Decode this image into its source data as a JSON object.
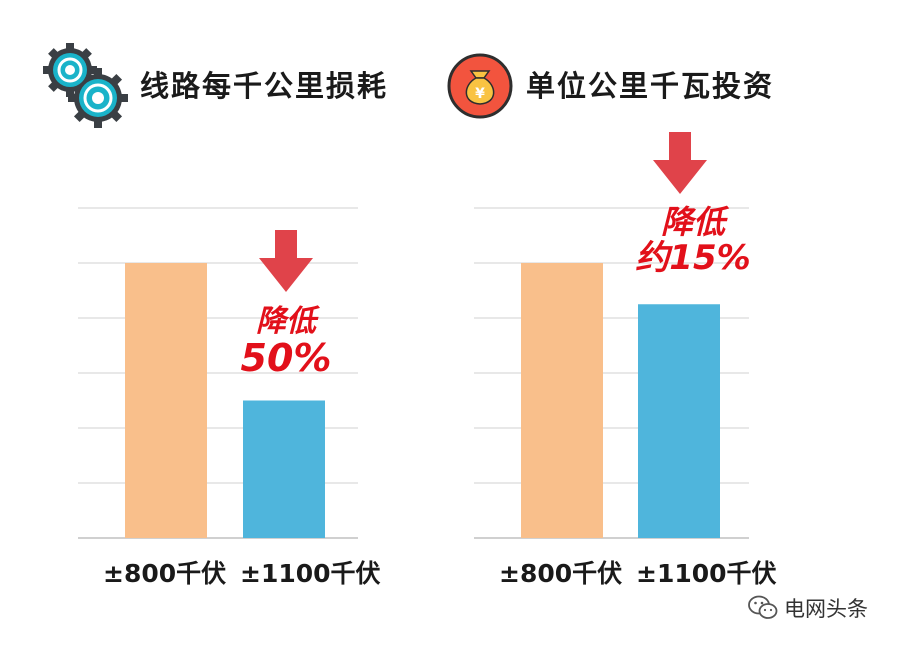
{
  "panels": [
    {
      "title": "线路每千公里损耗",
      "icon": "gears-icon",
      "annotation": [
        "降低",
        "50%"
      ]
    },
    {
      "title": "单位公里千瓦投资",
      "icon": "money-bag-icon",
      "annotation": [
        "降低",
        "约15%"
      ]
    }
  ],
  "chart_data": [
    {
      "type": "bar",
      "title": "线路每千公里损耗",
      "categories": [
        "±800千伏",
        "±1100千伏"
      ],
      "values": [
        100,
        50
      ],
      "ylim": [
        0,
        120
      ],
      "grid": true,
      "colors": [
        "#f9bf8b",
        "#4fb5dc"
      ]
    },
    {
      "type": "bar",
      "title": "单位公里千瓦投资",
      "categories": [
        "±800千伏",
        "±1100千伏"
      ],
      "values": [
        100,
        85
      ],
      "ylim": [
        0,
        120
      ],
      "grid": true,
      "colors": [
        "#f9bf8b",
        "#4fb5dc"
      ]
    }
  ],
  "watermark": {
    "icon": "wechat-icon",
    "text": "电网头条"
  }
}
